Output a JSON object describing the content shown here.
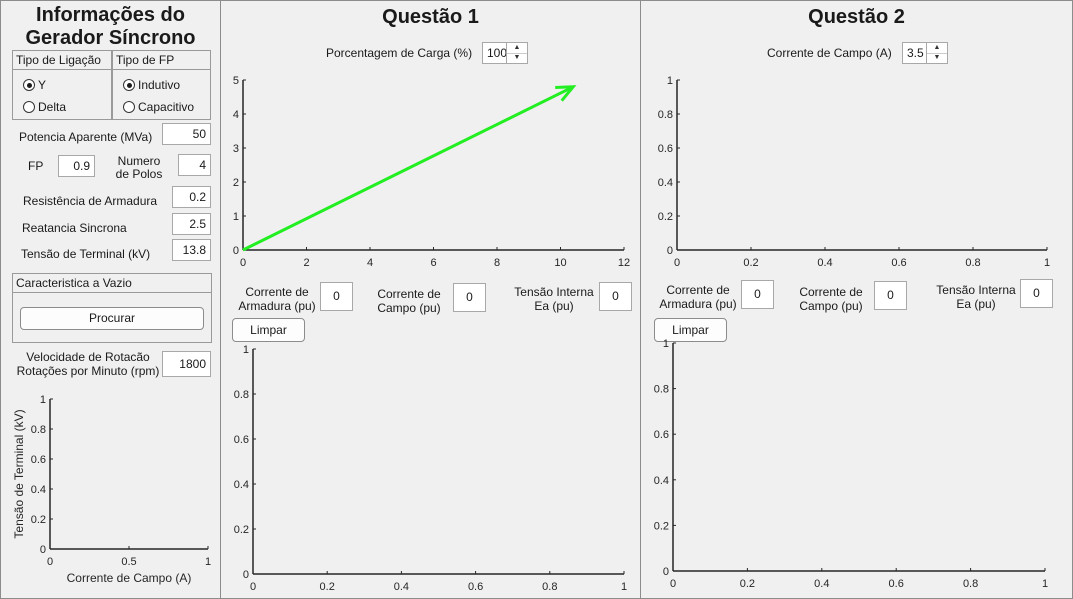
{
  "left": {
    "title_line1": "Informações do",
    "title_line2": "Gerador Síncrono",
    "tipo_ligacao": {
      "title": "Tipo de Ligação",
      "options": [
        "Y",
        "Delta"
      ],
      "selected": "Y"
    },
    "tipo_fp": {
      "title": "Tipo de FP",
      "options": [
        "Indutivo",
        "Capacitivo"
      ],
      "selected": "Indutivo"
    },
    "potencia_label": "Potencia Aparente (MVa)",
    "potencia_value": "50",
    "fp_label": "FP",
    "fp_value": "0.9",
    "polos_label_1": "Numero",
    "polos_label_2": "de Polos",
    "polos_value": "4",
    "resistencia_label": "Resistência de Armadura",
    "resistencia_value": "0.2",
    "reatancia_label": "Reatancia Sincrona",
    "reatancia_value": "2.5",
    "tensao_label": "Tensão de Terminal (kV)",
    "tensao_value": "13.8",
    "vazio_title": "Caracteristica a Vazio",
    "procurar_label": "Procurar",
    "velocidade_label_1": "Velocidade de Rotacão",
    "velocidade_label_2": "Rotações por Minuto (rpm)",
    "velocidade_value": "1800"
  },
  "q1": {
    "title": "Questão 1",
    "carga_label": "Porcentagem de Carga (%)",
    "carga_value": "100",
    "corrente_armadura_1": "Corrente de",
    "corrente_armadura_2": "Armadura (pu)",
    "corrente_armadura_value": "0",
    "corrente_campo_1": "Corrente de",
    "corrente_campo_2": "Campo (pu)",
    "corrente_campo_value": "0",
    "tensao_interna_1": "Tensão Interna",
    "tensao_interna_2": "Ea (pu)",
    "tensao_interna_value": "0",
    "limpar_label": "Limpar"
  },
  "q2": {
    "title": "Questão 2",
    "campo_label": "Corrente de Campo (A)",
    "campo_value": "3.5",
    "corrente_armadura_1": "Corrente de",
    "corrente_armadura_2": "Armadura (pu)",
    "corrente_armadura_value": "0",
    "corrente_campo_1": "Corrente de",
    "corrente_campo_2": "Campo (pu)",
    "corrente_campo_value": "0",
    "tensao_interna_1": "Tensão Interna",
    "tensao_interna_2": "Ea (pu)",
    "tensao_interna_value": "0",
    "limpar_label": "Limpar"
  },
  "colors": {
    "vector": "#22ee22",
    "axis": "#262626"
  },
  "chart_data": [
    {
      "id": "vazio",
      "type": "line",
      "xlabel": "Corrente de Campo (A)",
      "ylabel": "Tensão de Terminal (kV)",
      "xlim": [
        0,
        1
      ],
      "ylim": [
        0,
        1
      ],
      "xticks": [
        "0",
        "0.5",
        "1"
      ],
      "yticks": [
        "0",
        "0.2",
        "0.4",
        "0.6",
        "0.8",
        "1"
      ],
      "series": []
    },
    {
      "id": "q1-phasor",
      "type": "line",
      "xlabel": "",
      "ylabel": "",
      "xlim": [
        0,
        12
      ],
      "ylim": [
        0,
        5
      ],
      "xticks": [
        "0",
        "2",
        "4",
        "6",
        "8",
        "10",
        "12"
      ],
      "yticks": [
        "0",
        "1",
        "2",
        "3",
        "4",
        "5"
      ],
      "series": [
        {
          "x": [
            0,
            10.4
          ],
          "y": [
            0,
            4.8
          ],
          "arrow": true
        }
      ]
    },
    {
      "id": "q1-bottom",
      "type": "line",
      "xlabel": "",
      "ylabel": "",
      "xlim": [
        0,
        1
      ],
      "ylim": [
        0,
        1
      ],
      "xticks": [
        "0",
        "0.2",
        "0.4",
        "0.6",
        "0.8",
        "1"
      ],
      "yticks": [
        "0",
        "0.2",
        "0.4",
        "0.6",
        "0.8",
        "1"
      ],
      "series": []
    },
    {
      "id": "q2-top",
      "type": "line",
      "xlabel": "",
      "ylabel": "",
      "xlim": [
        0,
        1
      ],
      "ylim": [
        0,
        1
      ],
      "xticks": [
        "0",
        "0.2",
        "0.4",
        "0.6",
        "0.8",
        "1"
      ],
      "yticks": [
        "0",
        "0.2",
        "0.4",
        "0.6",
        "0.8",
        "1"
      ],
      "series": []
    },
    {
      "id": "q2-bottom",
      "type": "line",
      "xlabel": "",
      "ylabel": "",
      "xlim": [
        0,
        1
      ],
      "ylim": [
        0,
        1
      ],
      "xticks": [
        "0",
        "0.2",
        "0.4",
        "0.6",
        "0.8",
        "1"
      ],
      "yticks": [
        "0",
        "0.2",
        "0.4",
        "0.6",
        "0.8",
        "1"
      ],
      "series": []
    }
  ]
}
